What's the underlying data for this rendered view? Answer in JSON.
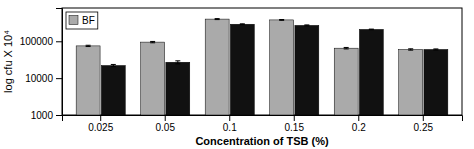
{
  "chart_data": {
    "type": "bar",
    "categories": [
      "0.025",
      "0.05",
      "0.1",
      "0.15",
      "0.2",
      "0.25"
    ],
    "series": [
      {
        "name": "BF",
        "color": "#aaaaaa",
        "values": [
          75000,
          95000,
          400000,
          380000,
          65000,
          60000
        ],
        "errors": [
          3000,
          4000,
          12000,
          10000,
          3000,
          2500
        ]
      },
      {
        "color": "#111111",
        "values": [
          22000,
          27000,
          290000,
          270000,
          210000,
          60000
        ],
        "errors": [
          1500,
          2500,
          8000,
          8000,
          4000,
          2000
        ]
      }
    ],
    "xlabel": "Concentration of TSB (%)",
    "ylabel": "log cfu X 10⁴",
    "ylim": [
      1000,
      800000
    ],
    "yticks": [
      1000,
      10000,
      100000
    ],
    "log": "y",
    "legend": "upper left"
  }
}
